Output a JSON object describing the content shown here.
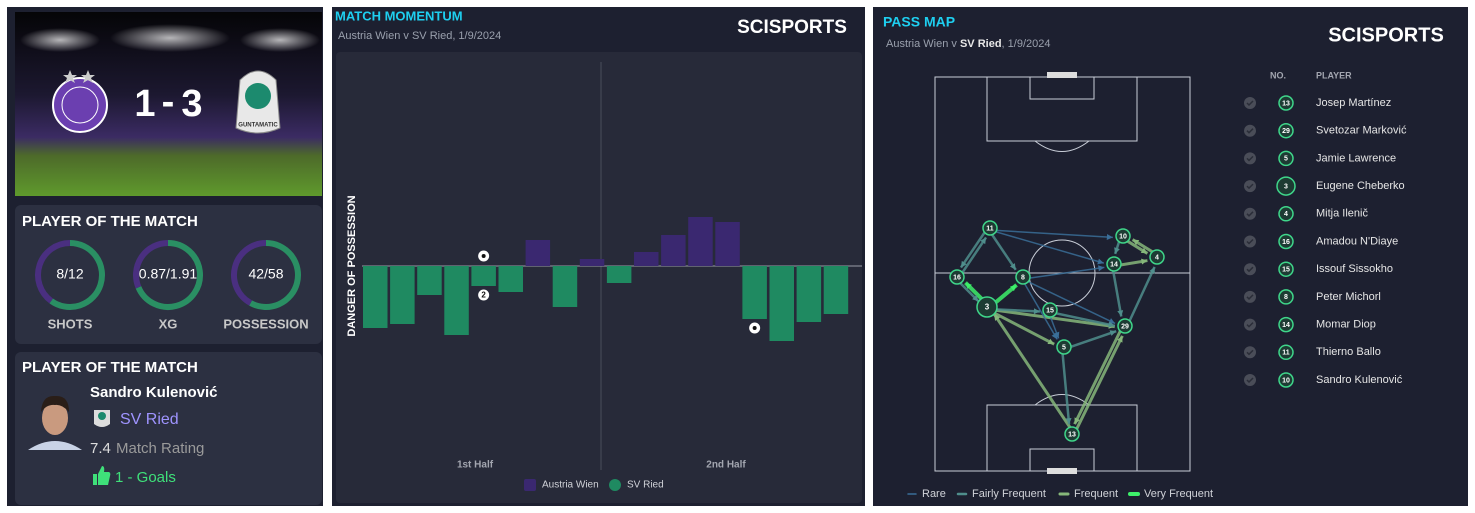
{
  "match": {
    "home_score": 1,
    "separator": "-",
    "away_score": 3,
    "away_sponsor": "GUNTAMATIC"
  },
  "stats_card": {
    "title": "PLAYER OF THE MATCH",
    "stats": [
      {
        "label": "SHOTS",
        "home": 8,
        "away": 12,
        "value_label": "8/12"
      },
      {
        "label": "XG",
        "home": 0.87,
        "away": 1.91,
        "value_label": "0.87/1.91"
      },
      {
        "label": "POSSESSION",
        "home": 42,
        "away": 58,
        "value_label": "42/58"
      }
    ]
  },
  "player_card": {
    "title": "PLAYER OF THE MATCH",
    "name": "Sandro Kulenović",
    "team": "SV Ried",
    "rating": 7.4,
    "rating_label": "Match Rating",
    "goals": "1 - Goals"
  },
  "chart_data": [
    {
      "type": "bar",
      "title": "MATCH MOMENTUM",
      "subtitle": "Austria Wien v SV Ried, 1/9/2024",
      "brand": "SCISPORTS",
      "y_label": "DANGER OF POSSESSION",
      "categories": [
        null,
        null,
        null,
        null,
        null,
        null,
        null,
        null,
        null,
        null,
        null,
        null,
        null,
        null,
        null,
        null,
        null,
        null
      ],
      "series": [
        {
          "name": "Austria Wien",
          "color": "#3a2870",
          "values": [
            null,
            null,
            null,
            null,
            null,
            null,
            26,
            null,
            7,
            null,
            14,
            31,
            49,
            44,
            null,
            null,
            null,
            null
          ]
        },
        {
          "name": "SV Ried",
          "color": "#1f8a61",
          "values": [
            -62,
            -58,
            -29,
            -69,
            -20,
            -26,
            null,
            -41,
            null,
            -17,
            null,
            null,
            null,
            null,
            -53,
            -75,
            -56,
            -48
          ]
        }
      ],
      "period_labels": [
        "1st Half",
        "2nd Half"
      ],
      "goals": [
        {
          "series": 0,
          "category": 4
        },
        {
          "series": 1,
          "category": 4,
          "count": 2
        },
        {
          "series": 1,
          "category": 14
        }
      ]
    },
    {
      "type": "pass-map",
      "title": "PASS MAP",
      "subtitle_parts": [
        "Austria Wien v ",
        "SV Ried",
        ", 1/9/2024"
      ],
      "brand": "SCISPORTS",
      "columns": [
        "NO.",
        "PLAYER"
      ],
      "players": [
        {
          "number": 13,
          "name": "Josep Martínez"
        },
        {
          "number": 29,
          "name": "Svetozar Marković"
        },
        {
          "number": 5,
          "name": "Jamie Lawrence"
        },
        {
          "number": 3,
          "name": "Eugene Cheberko"
        },
        {
          "number": 4,
          "name": "Mitja Ilenič"
        },
        {
          "number": 16,
          "name": "Amadou N'Diaye"
        },
        {
          "number": 15,
          "name": "Issouf Sissokho"
        },
        {
          "number": 8,
          "name": "Peter Michorl"
        },
        {
          "number": 14,
          "name": "Momar Diop"
        },
        {
          "number": 11,
          "name": "Thierno Ballo"
        },
        {
          "number": 10,
          "name": "Sandro Kulenović"
        }
      ],
      "legend": [
        {
          "label": "Rare",
          "color": "#3a6e98"
        },
        {
          "label": "Fairly Frequent",
          "color": "#4f8e8c"
        },
        {
          "label": "Frequent",
          "color": "#86b77a"
        },
        {
          "label": "Very Frequent",
          "color": "#3df06a"
        }
      ]
    }
  ]
}
